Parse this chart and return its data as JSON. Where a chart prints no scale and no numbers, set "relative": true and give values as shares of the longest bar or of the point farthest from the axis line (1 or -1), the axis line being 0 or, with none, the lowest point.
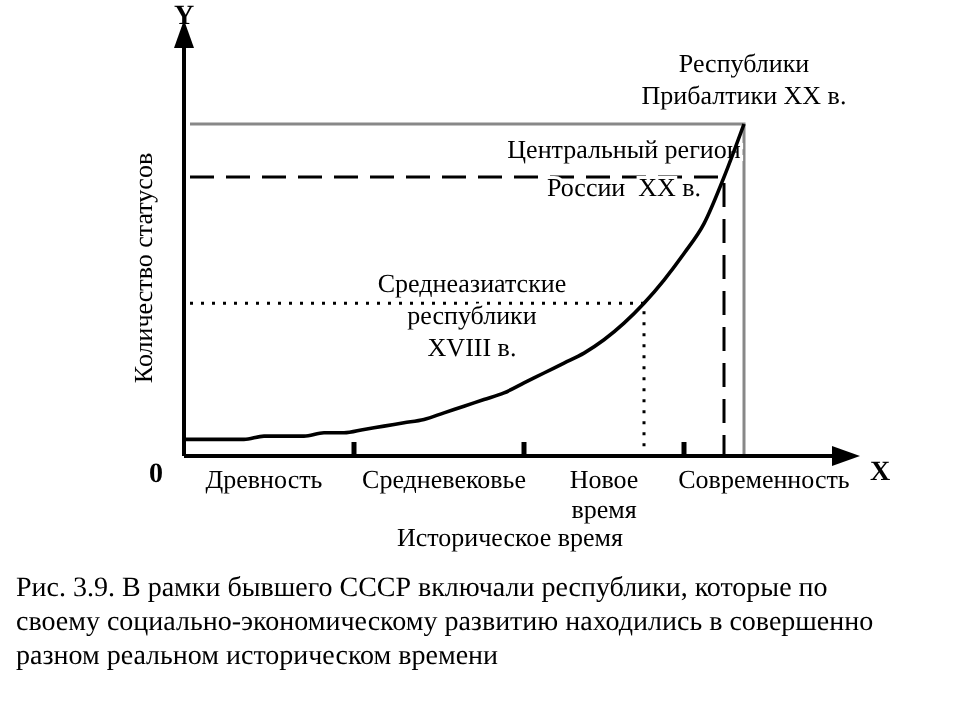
{
  "chart_data": {
    "type": "line",
    "relative": true,
    "xlabel": "Историческое время",
    "ylabel": "Количество статусов",
    "categories": [
      null,
      null,
      null,
      null,
      "Древность",
      null,
      null,
      null,
      null,
      null,
      null,
      null,
      null,
      "Средневековье",
      null,
      null,
      null,
      null,
      null,
      null,
      null,
      "Новое\nвремя",
      null,
      null,
      null,
      null,
      null,
      null,
      null,
      "Современность"
    ],
    "series": [
      {
        "color": "#000000",
        "values": [
          0.05,
          0.05,
          0.05,
          0.05,
          0.06,
          0.06,
          0.06,
          0.07,
          0.07,
          0.08,
          0.09,
          0.1,
          0.11,
          0.13,
          0.15,
          0.17,
          0.19,
          0.22,
          0.25,
          0.28,
          0.31,
          0.35,
          0.4,
          0.46,
          0.53,
          0.61,
          0.7,
          0.84,
          1,
          null
        ]
      }
    ],
    "ref_lines": [
      {
        "axis": "y",
        "value": 1,
        "label": "Республики\nПрибалтики XX в.",
        "color": "#888888",
        "line_style": "solid"
      },
      {
        "axis": "y",
        "value": 0.84,
        "label": "Центральный регион\nРоссии  XX в.",
        "color": "#000000",
        "line_style": "dashed"
      },
      {
        "axis": "y",
        "value": 0.46,
        "label": "Среднеазиатские\nреспублики\nXVIII в.",
        "color": "#000000",
        "line_style": "dotted"
      }
    ],
    "annotations": [
      "Y",
      "X",
      "0",
      "Рис. 3.9. В рамки бывшего СССР включали республики, которые по своему социально-экономическому развитию находились в совершенно разном реальном историческом времени"
    ],
    "marker": "none"
  }
}
